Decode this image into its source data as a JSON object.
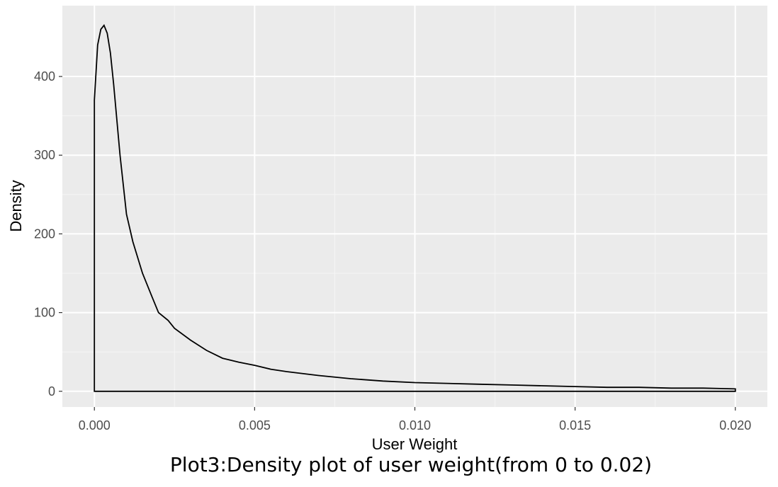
{
  "caption": "Plot3:Density plot of user weight(from 0 to 0.02)",
  "chart_data": {
    "type": "area",
    "title": "",
    "xlabel": "User Weight",
    "ylabel": "Density",
    "xlim": [
      -0.001,
      0.021
    ],
    "ylim": [
      -20,
      490
    ],
    "xticks": [
      0.0,
      0.005,
      0.01,
      0.015,
      0.02
    ],
    "xtick_labels": [
      "0.000",
      "0.005",
      "0.010",
      "0.015",
      "0.020"
    ],
    "yticks": [
      0,
      100,
      200,
      300,
      400
    ],
    "ytick_labels": [
      "0",
      "100",
      "200",
      "300",
      "400"
    ],
    "grid": true,
    "fill": "none",
    "colors": {
      "panel": "#ebebeb",
      "grid_major": "#ffffff",
      "grid_minor": "#f5f5f5",
      "line": "#000000"
    },
    "x": [
      0.0,
      0.0001,
      0.0002,
      0.0003,
      0.0004,
      0.0005,
      0.0006,
      0.0008,
      0.001,
      0.0012,
      0.0015,
      0.0018,
      0.002,
      0.0023,
      0.0025,
      0.003,
      0.0035,
      0.004,
      0.0045,
      0.005,
      0.0055,
      0.006,
      0.007,
      0.008,
      0.009,
      0.01,
      0.011,
      0.012,
      0.013,
      0.014,
      0.015,
      0.016,
      0.017,
      0.018,
      0.019,
      0.02
    ],
    "values": [
      370,
      440,
      460,
      465,
      455,
      430,
      390,
      300,
      225,
      190,
      150,
      120,
      100,
      90,
      80,
      65,
      52,
      42,
      37,
      33,
      28,
      25,
      20,
      16,
      13,
      11,
      10,
      9,
      8,
      7,
      6,
      5,
      5,
      4,
      4,
      3
    ]
  }
}
